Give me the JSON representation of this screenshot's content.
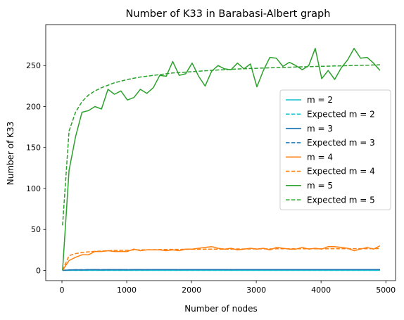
{
  "chart_data": {
    "type": "line",
    "title": "Number of K33 in Barabasi-Albert graph",
    "xlabel": "Number of nodes",
    "ylabel": "Number of K33",
    "xlim": [
      -250,
      5150
    ],
    "ylim": [
      -12.5,
      300
    ],
    "xticks": [
      0,
      1000,
      2000,
      3000,
      4000,
      5000
    ],
    "yticks": [
      0,
      50,
      100,
      150,
      200,
      250
    ],
    "grid": false,
    "legend_position": "center-right",
    "x": [
      10,
      110,
      210,
      310,
      410,
      510,
      610,
      710,
      810,
      910,
      1010,
      1110,
      1210,
      1310,
      1410,
      1510,
      1610,
      1710,
      1810,
      1910,
      2010,
      2110,
      2210,
      2310,
      2410,
      2510,
      2610,
      2710,
      2810,
      2910,
      3010,
      3110,
      3210,
      3310,
      3410,
      3510,
      3610,
      3710,
      3810,
      3910,
      4010,
      4110,
      4210,
      4310,
      4410,
      4510,
      4610,
      4710,
      4810,
      4910
    ],
    "series": [
      {
        "name": "m = 2",
        "color": "#17becf",
        "dash": false,
        "values": [
          0,
          0,
          0,
          0,
          0,
          0,
          0,
          0,
          0,
          0,
          0,
          0,
          0,
          0,
          0,
          0,
          0,
          0,
          0,
          0,
          0,
          0,
          0,
          0,
          0,
          0,
          0,
          0,
          0,
          0,
          0,
          0,
          0,
          0,
          0,
          0,
          0,
          0,
          0,
          0,
          0,
          0,
          0,
          0,
          0,
          0,
          0,
          0,
          0,
          0
        ]
      },
      {
        "name": "Expected m = 2",
        "color": "#17becf",
        "dash": true,
        "values": [
          0,
          0,
          0,
          0,
          0,
          0,
          0,
          0,
          0,
          0,
          0,
          0,
          0,
          0,
          0,
          0,
          0,
          0,
          0,
          0,
          0,
          0,
          0,
          0,
          0,
          0,
          0,
          0,
          0,
          0,
          0,
          0,
          0,
          0,
          0,
          0,
          0,
          0,
          0,
          0,
          0,
          0,
          0,
          0,
          0,
          0,
          0,
          0,
          0,
          0
        ]
      },
      {
        "name": "m = 3",
        "color": "#1f77b4",
        "dash": false,
        "values": [
          0,
          0.5,
          0.8,
          0.6,
          0.9,
          1,
          0.7,
          1,
          0.9,
          1,
          0.8,
          1,
          1.1,
          0.9,
          1,
          1,
          1,
          1.1,
          0.9,
          1,
          1,
          1,
          1.1,
          1,
          1,
          1,
          0.9,
          1,
          1,
          1,
          1.1,
          1,
          1,
          1,
          1,
          1,
          1.1,
          1,
          1,
          1,
          1,
          1,
          1,
          1.1,
          1,
          1,
          1,
          1,
          1,
          1
        ]
      },
      {
        "name": "Expected m = 3",
        "color": "#1f77b4",
        "dash": true,
        "values": [
          0,
          0.6,
          0.75,
          0.8,
          0.85,
          0.87,
          0.88,
          0.9,
          0.91,
          0.92,
          0.92,
          0.93,
          0.93,
          0.94,
          0.94,
          0.94,
          0.95,
          0.95,
          0.95,
          0.95,
          0.96,
          0.96,
          0.96,
          0.96,
          0.96,
          0.96,
          0.97,
          0.97,
          0.97,
          0.97,
          0.97,
          0.97,
          0.97,
          0.97,
          0.97,
          0.98,
          0.98,
          0.98,
          0.98,
          0.98,
          0.98,
          0.98,
          0.98,
          0.98,
          0.98,
          0.98,
          0.98,
          0.98,
          0.98,
          0.98
        ]
      },
      {
        "name": "m = 4",
        "color": "#ff7f0e",
        "dash": false,
        "values": [
          0,
          12,
          16,
          19,
          19,
          23,
          23,
          24,
          23,
          23,
          23,
          26,
          24,
          25,
          25,
          25,
          24,
          25,
          24,
          26,
          26,
          27,
          28,
          29,
          27,
          26,
          27,
          25,
          26,
          27,
          26,
          27,
          25,
          28,
          27,
          26,
          26,
          28,
          26,
          27,
          26,
          29,
          29,
          28,
          27,
          24,
          26,
          28,
          26,
          30
        ]
      },
      {
        "name": "Expected m = 4",
        "color": "#ff7f0e",
        "dash": true,
        "values": [
          0,
          18,
          20.5,
          21.8,
          22.6,
          23.2,
          23.6,
          24,
          24.3,
          24.5,
          24.7,
          24.9,
          25,
          25.2,
          25.3,
          25.4,
          25.5,
          25.6,
          25.6,
          25.7,
          25.8,
          25.8,
          25.9,
          25.9,
          26,
          26,
          26,
          26.1,
          26.1,
          26.1,
          26.2,
          26.2,
          26.2,
          26.3,
          26.3,
          26.3,
          26.3,
          26.4,
          26.4,
          26.4,
          26.4,
          26.4,
          26.5,
          26.5,
          26.5,
          26.5,
          26.5,
          26.5,
          26.6,
          26.6
        ]
      },
      {
        "name": "m = 5",
        "color": "#2ca02c",
        "dash": false,
        "values": [
          0,
          122,
          163,
          193,
          195,
          200,
          197,
          221,
          215,
          219,
          208,
          211,
          221,
          216,
          223,
          238,
          237,
          255,
          238,
          240,
          253,
          237,
          225,
          243,
          250,
          246,
          245,
          253,
          246,
          252,
          224,
          244,
          260,
          259,
          249,
          254,
          250,
          245,
          250,
          271,
          234,
          244,
          233,
          247,
          257,
          271,
          259,
          260,
          253,
          244
        ]
      },
      {
        "name": "Expected m = 5",
        "color": "#2ca02c",
        "dash": true,
        "values": [
          55,
          170,
          193,
          206,
          214,
          219,
          223,
          226,
          229,
          231,
          233,
          234.5,
          236,
          237,
          238,
          239,
          240,
          241,
          241.5,
          242,
          242.6,
          243.2,
          243.7,
          244.2,
          244.6,
          245,
          245.4,
          245.8,
          246.1,
          246.4,
          246.7,
          247,
          247.3,
          247.6,
          247.8,
          248,
          248.3,
          248.5,
          248.7,
          248.9,
          249.1,
          249.3,
          249.5,
          249.7,
          249.9,
          250.1,
          250.3,
          250.5,
          250.7,
          251
        ]
      }
    ]
  }
}
